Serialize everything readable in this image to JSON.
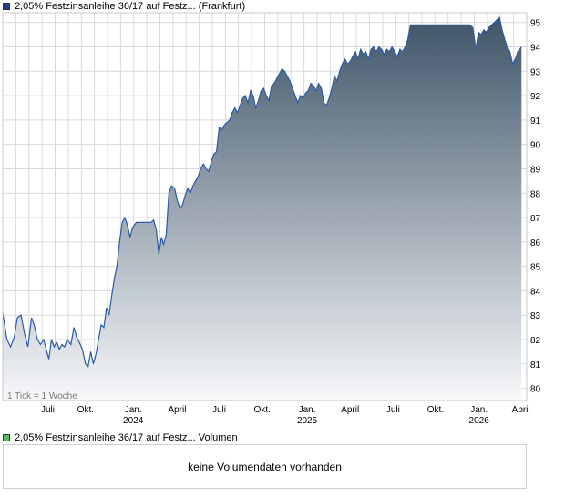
{
  "header": {
    "series_label": "2,05% Festzinsanleihe 36/17 auf Festz... (Frankfurt)",
    "series_color": "#1f3f8f"
  },
  "volume": {
    "label": "2,05% Festzinsanleihe 36/17 auf Festz... Volumen",
    "swatch_color": "#5cb85c",
    "message": "keine Volumendaten vorhanden"
  },
  "tick_note": "1 Tick = 1 Woche",
  "colors": {
    "line": "#2b5aa8",
    "fill_top": "#3f5568",
    "fill_bottom": "#f7f8fa",
    "grid": "#d9d9d9"
  },
  "chart_data": {
    "type": "area",
    "title": "2,05% Festzinsanleihe 36/17 auf Festz... (Frankfurt)",
    "xlabel": "",
    "ylabel": "",
    "ylim": [
      79.5,
      95.4
    ],
    "y_ticks": [
      80,
      81,
      82,
      83,
      84,
      85,
      86,
      87,
      88,
      89,
      90,
      91,
      92,
      93,
      94,
      95
    ],
    "x_ticks": [
      {
        "label": "Juli",
        "year": "",
        "t": 0.086
      },
      {
        "label": "Okt.",
        "year": "",
        "t": 0.158
      },
      {
        "label": "Jan.",
        "year": "2024",
        "t": 0.249
      },
      {
        "label": "April",
        "year": "",
        "t": 0.333
      },
      {
        "label": "Juli",
        "year": "",
        "t": 0.413
      },
      {
        "label": "Okt.",
        "year": "",
        "t": 0.495
      },
      {
        "label": "Jan.",
        "year": "2025",
        "t": 0.581
      },
      {
        "label": "April",
        "year": "",
        "t": 0.663
      },
      {
        "label": "Juli",
        "year": "",
        "t": 0.745
      },
      {
        "label": "Okt.",
        "year": "",
        "t": 0.826
      },
      {
        "label": "Jan.",
        "year": "2026",
        "t": 0.909
      },
      {
        "label": "April",
        "year": "",
        "t": 0.989
      }
    ],
    "grid": true,
    "legend": "top-left",
    "series": [
      {
        "name": "2,05% Festzinsanleihe 36/17 auf Festz... (Frankfurt)",
        "points": [
          [
            0.0,
            83.1
          ],
          [
            0.008,
            82.0
          ],
          [
            0.015,
            81.7
          ],
          [
            0.022,
            82.1
          ],
          [
            0.028,
            82.9
          ],
          [
            0.035,
            83.0
          ],
          [
            0.042,
            82.2
          ],
          [
            0.048,
            81.7
          ],
          [
            0.055,
            82.9
          ],
          [
            0.06,
            82.6
          ],
          [
            0.066,
            82.0
          ],
          [
            0.072,
            81.8
          ],
          [
            0.078,
            82.0
          ],
          [
            0.083,
            81.6
          ],
          [
            0.088,
            81.2
          ],
          [
            0.093,
            82.0
          ],
          [
            0.098,
            81.7
          ],
          [
            0.103,
            81.9
          ],
          [
            0.108,
            81.6
          ],
          [
            0.113,
            81.8
          ],
          [
            0.118,
            81.7
          ],
          [
            0.123,
            82.0
          ],
          [
            0.13,
            81.8
          ],
          [
            0.136,
            82.5
          ],
          [
            0.141,
            82.1
          ],
          [
            0.146,
            81.9
          ],
          [
            0.152,
            81.6
          ],
          [
            0.158,
            81.0
          ],
          [
            0.163,
            80.9
          ],
          [
            0.168,
            81.5
          ],
          [
            0.173,
            81.0
          ],
          [
            0.178,
            81.4
          ],
          [
            0.183,
            82.0
          ],
          [
            0.188,
            82.6
          ],
          [
            0.193,
            82.5
          ],
          [
            0.198,
            83.3
          ],
          [
            0.203,
            83.0
          ],
          [
            0.208,
            83.8
          ],
          [
            0.213,
            84.5
          ],
          [
            0.218,
            85.0
          ],
          [
            0.223,
            86.0
          ],
          [
            0.228,
            86.8
          ],
          [
            0.233,
            87.0
          ],
          [
            0.238,
            86.7
          ],
          [
            0.243,
            86.2
          ],
          [
            0.248,
            86.6
          ],
          [
            0.255,
            86.8
          ],
          [
            0.262,
            86.8
          ],
          [
            0.27,
            86.8
          ],
          [
            0.277,
            86.8
          ],
          [
            0.283,
            86.8
          ],
          [
            0.288,
            86.9
          ],
          [
            0.293,
            86.5
          ],
          [
            0.298,
            85.5
          ],
          [
            0.303,
            86.2
          ],
          [
            0.307,
            85.9
          ],
          [
            0.312,
            86.3
          ],
          [
            0.317,
            88.0
          ],
          [
            0.322,
            88.3
          ],
          [
            0.328,
            88.2
          ],
          [
            0.333,
            87.7
          ],
          [
            0.338,
            87.4
          ],
          [
            0.343,
            87.5
          ],
          [
            0.348,
            87.9
          ],
          [
            0.353,
            88.2
          ],
          [
            0.358,
            88.0
          ],
          [
            0.363,
            88.3
          ],
          [
            0.368,
            88.5
          ],
          [
            0.373,
            88.7
          ],
          [
            0.378,
            89.0
          ],
          [
            0.383,
            89.2
          ],
          [
            0.388,
            89.0
          ],
          [
            0.393,
            88.9
          ],
          [
            0.398,
            89.3
          ],
          [
            0.403,
            89.6
          ],
          [
            0.408,
            89.7
          ],
          [
            0.413,
            90.7
          ],
          [
            0.418,
            90.6
          ],
          [
            0.423,
            90.8
          ],
          [
            0.428,
            90.9
          ],
          [
            0.433,
            91.0
          ],
          [
            0.438,
            91.3
          ],
          [
            0.443,
            91.5
          ],
          [
            0.448,
            91.3
          ],
          [
            0.453,
            91.6
          ],
          [
            0.458,
            91.9
          ],
          [
            0.463,
            92.0
          ],
          [
            0.468,
            91.7
          ],
          [
            0.473,
            92.2
          ],
          [
            0.478,
            92.0
          ],
          [
            0.483,
            91.5
          ],
          [
            0.488,
            91.8
          ],
          [
            0.493,
            92.2
          ],
          [
            0.498,
            92.3
          ],
          [
            0.503,
            92.0
          ],
          [
            0.508,
            91.8
          ],
          [
            0.513,
            92.4
          ],
          [
            0.518,
            92.5
          ],
          [
            0.523,
            92.7
          ],
          [
            0.528,
            92.9
          ],
          [
            0.533,
            93.1
          ],
          [
            0.538,
            93.0
          ],
          [
            0.543,
            92.8
          ],
          [
            0.548,
            92.6
          ],
          [
            0.553,
            92.3
          ],
          [
            0.558,
            92.0
          ],
          [
            0.563,
            91.7
          ],
          [
            0.568,
            92.0
          ],
          [
            0.573,
            91.9
          ],
          [
            0.578,
            92.1
          ],
          [
            0.583,
            92.2
          ],
          [
            0.588,
            92.5
          ],
          [
            0.593,
            92.4
          ],
          [
            0.598,
            92.2
          ],
          [
            0.603,
            92.5
          ],
          [
            0.608,
            92.3
          ],
          [
            0.613,
            91.7
          ],
          [
            0.618,
            91.6
          ],
          [
            0.623,
            91.9
          ],
          [
            0.628,
            92.3
          ],
          [
            0.633,
            92.8
          ],
          [
            0.638,
            92.6
          ],
          [
            0.643,
            93.0
          ],
          [
            0.648,
            93.3
          ],
          [
            0.653,
            93.5
          ],
          [
            0.658,
            93.3
          ],
          [
            0.663,
            93.4
          ],
          [
            0.668,
            93.6
          ],
          [
            0.673,
            93.8
          ],
          [
            0.678,
            93.5
          ],
          [
            0.683,
            93.9
          ],
          [
            0.688,
            93.7
          ],
          [
            0.693,
            93.8
          ],
          [
            0.698,
            93.5
          ],
          [
            0.703,
            93.9
          ],
          [
            0.708,
            94.0
          ],
          [
            0.713,
            93.8
          ],
          [
            0.718,
            94.0
          ],
          [
            0.723,
            93.9
          ],
          [
            0.728,
            93.7
          ],
          [
            0.733,
            93.9
          ],
          [
            0.738,
            93.8
          ],
          [
            0.743,
            94.0
          ],
          [
            0.748,
            93.8
          ],
          [
            0.753,
            93.6
          ],
          [
            0.758,
            93.9
          ],
          [
            0.763,
            93.8
          ],
          [
            0.768,
            94.0
          ],
          [
            0.773,
            94.3
          ],
          [
            0.778,
            94.9
          ],
          [
            0.79,
            94.9
          ],
          [
            0.81,
            94.9
          ],
          [
            0.83,
            94.9
          ],
          [
            0.85,
            94.9
          ],
          [
            0.87,
            94.9
          ],
          [
            0.89,
            94.9
          ],
          [
            0.897,
            94.8
          ],
          [
            0.903,
            93.9
          ],
          [
            0.908,
            94.6
          ],
          [
            0.913,
            94.5
          ],
          [
            0.918,
            94.7
          ],
          [
            0.923,
            94.6
          ],
          [
            0.928,
            94.8
          ],
          [
            0.933,
            94.9
          ],
          [
            0.938,
            95.0
          ],
          [
            0.943,
            95.1
          ],
          [
            0.948,
            95.2
          ],
          [
            0.953,
            94.7
          ],
          [
            0.958,
            94.3
          ],
          [
            0.963,
            94.0
          ],
          [
            0.968,
            93.8
          ],
          [
            0.973,
            93.3
          ],
          [
            0.978,
            93.5
          ],
          [
            0.983,
            93.8
          ],
          [
            0.99,
            94.0
          ]
        ]
      }
    ]
  }
}
